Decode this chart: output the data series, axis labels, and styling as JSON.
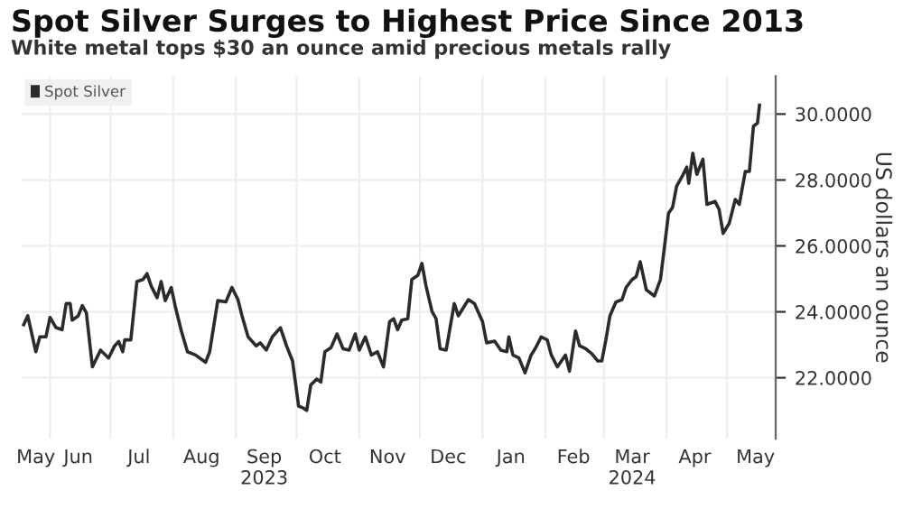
{
  "chart_data": {
    "type": "line",
    "title": "Spot Silver Surges to Highest Price Since 2013",
    "subtitle": "White metal tops $30 an ounce amid precious metals rally",
    "ylabel": "US dollars an ounce",
    "legend": "top left",
    "grid": true,
    "marker": "none",
    "line_style": "solid",
    "xlim": [
      "2023-05-18",
      "2024-05-25"
    ],
    "ylim": [
      20.15,
      31.15
    ],
    "yticks": [
      {
        "value": 22,
        "label": "22.0000"
      },
      {
        "value": 24,
        "label": "24.0000"
      },
      {
        "value": 26,
        "label": "26.0000"
      },
      {
        "value": 28,
        "label": "28.0000"
      },
      {
        "value": 30,
        "label": "30.0000"
      }
    ],
    "xticks": [
      {
        "value": "2023-06-01",
        "label": null
      },
      {
        "value": "2023-07-01",
        "label": null
      },
      {
        "value": "2023-08-01",
        "label": null
      },
      {
        "value": "2023-09-01",
        "label": null
      },
      {
        "value": "2023-10-01",
        "label": null
      },
      {
        "value": "2023-11-01",
        "label": null
      },
      {
        "value": "2023-12-01",
        "label": null
      },
      {
        "value": "2024-01-01",
        "label": null
      },
      {
        "value": "2024-02-01",
        "label": null
      },
      {
        "value": "2024-03-01",
        "label": null
      },
      {
        "value": "2024-04-01",
        "label": null
      },
      {
        "value": "2024-05-01",
        "label": null
      },
      {
        "value": "2023-05-25",
        "label": "May"
      },
      {
        "value": "2023-06-15",
        "label": "Jun"
      },
      {
        "value": "2023-07-15",
        "label": "Jul"
      },
      {
        "value": "2023-08-15",
        "label": "Aug"
      },
      {
        "value": "2023-09-15",
        "label": "Sep\n2023"
      },
      {
        "value": "2023-10-15",
        "label": "Oct"
      },
      {
        "value": "2023-11-15",
        "label": "Nov"
      },
      {
        "value": "2023-12-15",
        "label": "Dec"
      },
      {
        "value": "2024-01-15",
        "label": "Jan"
      },
      {
        "value": "2024-02-15",
        "label": "Feb"
      },
      {
        "value": "2024-03-15",
        "label": "Mar\n2024"
      },
      {
        "value": "2024-04-15",
        "label": "Apr"
      },
      {
        "value": "2024-05-15",
        "label": "May"
      }
    ],
    "series": [
      {
        "name": "Spot Silver",
        "color": "#2b2b2b",
        "x": [
          "2023-05-19",
          "2023-05-21",
          "2023-05-25",
          "2023-05-27",
          "2023-05-30",
          "2023-06-01",
          "2023-06-04",
          "2023-06-07",
          "2023-06-09",
          "2023-06-11",
          "2023-06-12",
          "2023-06-15",
          "2023-06-17",
          "2023-06-19",
          "2023-06-22",
          "2023-06-26",
          "2023-06-30",
          "2023-07-03",
          "2023-07-05",
          "2023-07-07",
          "2023-07-08",
          "2023-07-11",
          "2023-07-14",
          "2023-07-17",
          "2023-07-19",
          "2023-07-21",
          "2023-07-24",
          "2023-07-26",
          "2023-07-28",
          "2023-07-31",
          "2023-08-02",
          "2023-08-05",
          "2023-08-08",
          "2023-08-12",
          "2023-08-17",
          "2023-08-19",
          "2023-08-23",
          "2023-08-27",
          "2023-08-30",
          "2023-09-02",
          "2023-09-04",
          "2023-09-07",
          "2023-09-11",
          "2023-09-13",
          "2023-09-16",
          "2023-09-19",
          "2023-09-23",
          "2023-09-26",
          "2023-09-29",
          "2023-10-02",
          "2023-10-04",
          "2023-10-06",
          "2023-10-08",
          "2023-10-11",
          "2023-10-13",
          "2023-10-15",
          "2023-10-18",
          "2023-10-21",
          "2023-10-24",
          "2023-10-27",
          "2023-10-30",
          "2023-11-01",
          "2023-11-04",
          "2023-11-07",
          "2023-11-10",
          "2023-11-13",
          "2023-11-16",
          "2023-11-18",
          "2023-11-20",
          "2023-11-22",
          "2023-11-25",
          "2023-11-27",
          "2023-11-30",
          "2023-12-02",
          "2023-12-04",
          "2023-12-07",
          "2023-12-09",
          "2023-12-11",
          "2023-12-14",
          "2023-12-18",
          "2023-12-20",
          "2023-12-25",
          "2023-12-28",
          "2024-01-01",
          "2024-01-03",
          "2024-01-07",
          "2024-01-10",
          "2024-01-13",
          "2024-01-14",
          "2024-01-16",
          "2024-01-19",
          "2024-01-22",
          "2024-01-25",
          "2024-01-27",
          "2024-01-30",
          "2024-02-02",
          "2024-02-04",
          "2024-02-07",
          "2024-02-11",
          "2024-02-13",
          "2024-02-16",
          "2024-02-18",
          "2024-02-21",
          "2024-02-24",
          "2024-02-27",
          "2024-02-29",
          "2024-03-02",
          "2024-03-04",
          "2024-03-07",
          "2024-03-10",
          "2024-03-12",
          "2024-03-15",
          "2024-03-17",
          "2024-03-19",
          "2024-03-22",
          "2024-03-26",
          "2024-03-29",
          "2024-03-31",
          "2024-04-02",
          "2024-04-04",
          "2024-04-06",
          "2024-04-09",
          "2024-04-11",
          "2024-04-12",
          "2024-04-14",
          "2024-04-16",
          "2024-04-19",
          "2024-04-21",
          "2024-04-25",
          "2024-04-27",
          "2024-04-29",
          "2024-05-02",
          "2024-05-05",
          "2024-05-07",
          "2024-05-10",
          "2024-05-12",
          "2024-05-14",
          "2024-05-16",
          "2024-05-17"
        ],
        "values": [
          23.61,
          23.88,
          22.79,
          23.24,
          23.24,
          23.83,
          23.52,
          23.46,
          24.25,
          24.25,
          23.75,
          23.88,
          24.19,
          23.97,
          22.33,
          22.84,
          22.6,
          22.97,
          23.1,
          22.79,
          23.15,
          23.15,
          24.92,
          24.98,
          25.16,
          24.79,
          24.43,
          24.92,
          24.34,
          24.74,
          24.16,
          23.42,
          22.79,
          22.69,
          22.47,
          22.79,
          24.34,
          24.3,
          24.74,
          24.37,
          23.88,
          23.24,
          22.97,
          23.06,
          22.84,
          23.24,
          23.52,
          22.97,
          22.51,
          21.14,
          21.09,
          21.01,
          21.78,
          21.96,
          21.87,
          22.79,
          22.91,
          23.33,
          22.88,
          22.84,
          23.33,
          22.84,
          23.24,
          22.69,
          22.79,
          22.33,
          23.7,
          23.79,
          23.46,
          23.75,
          23.79,
          24.98,
          25.11,
          25.47,
          24.79,
          24.01,
          23.79,
          22.88,
          22.84,
          24.25,
          23.88,
          24.37,
          24.25,
          23.7,
          23.06,
          23.11,
          22.84,
          22.79,
          23.24,
          22.69,
          22.6,
          22.15,
          22.69,
          22.88,
          23.24,
          23.15,
          22.69,
          22.33,
          22.69,
          22.2,
          23.42,
          22.97,
          22.88,
          22.73,
          22.51,
          22.51,
          23.15,
          23.88,
          24.3,
          24.37,
          24.74,
          24.98,
          25.07,
          25.52,
          24.67,
          24.48,
          24.98,
          25.98,
          26.99,
          27.17,
          27.81,
          28.14,
          28.39,
          27.9,
          28.81,
          28.17,
          28.63,
          27.26,
          27.35,
          27.11,
          26.38,
          26.68,
          27.41,
          27.26,
          28.26,
          28.26,
          29.63,
          29.73,
          30.27
        ]
      }
    ]
  }
}
